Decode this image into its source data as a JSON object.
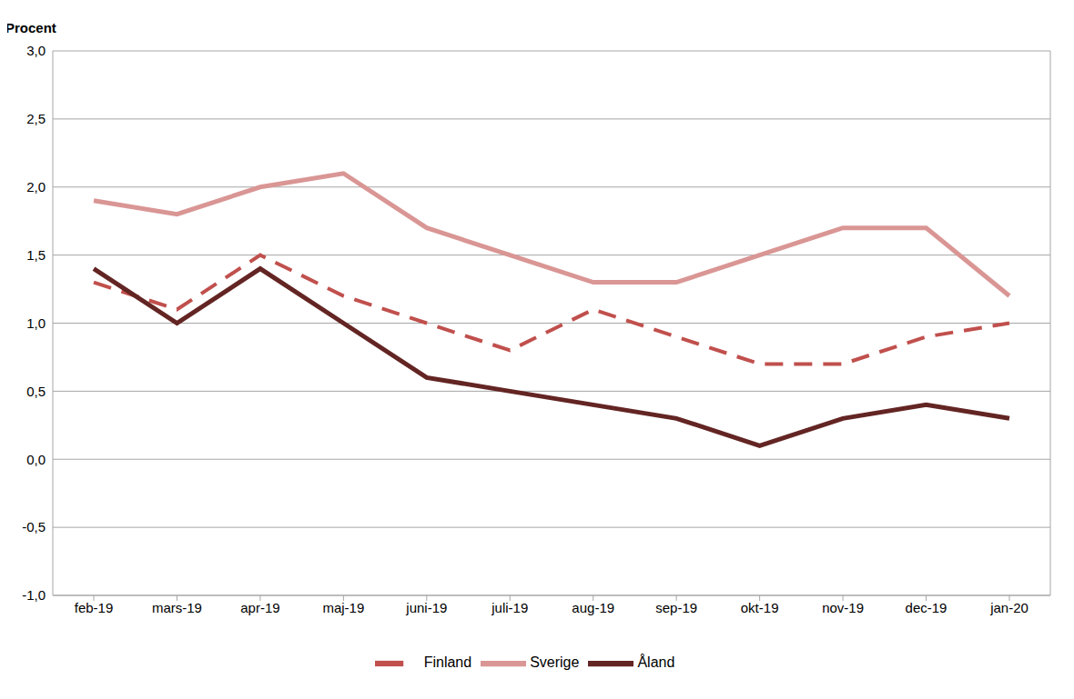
{
  "chart_data": {
    "type": "line",
    "y_label": "Procent",
    "categories": [
      "feb-19",
      "mars-19",
      "apr-19",
      "maj-19",
      "juni-19",
      "juli-19",
      "aug-19",
      "sep-19",
      "okt-19",
      "nov-19",
      "dec-19",
      "jan-20"
    ],
    "series": [
      {
        "name": "Sverige",
        "color": "#d99694",
        "line_style": "solid",
        "values": [
          1.9,
          1.8,
          2.0,
          2.1,
          1.7,
          1.5,
          1.3,
          1.3,
          1.5,
          1.7,
          1.7,
          1.2
        ]
      },
      {
        "name": "Finland",
        "color": "#c0504d",
        "line_style": "dashed",
        "values": [
          1.3,
          1.1,
          1.5,
          1.2,
          1.0,
          0.8,
          1.1,
          0.9,
          0.7,
          0.7,
          0.9,
          1.0
        ]
      },
      {
        "name": "Åland",
        "color": "#632523",
        "line_style": "solid",
        "values": [
          1.4,
          1.0,
          1.4,
          1.0,
          0.6,
          0.5,
          0.4,
          0.3,
          0.1,
          0.3,
          0.4,
          0.3
        ]
      }
    ],
    "ylim": [
      -1.0,
      3.0
    ],
    "yticks": [
      {
        "value": -1.0,
        "label": "-1,0"
      },
      {
        "value": -0.5,
        "label": "-0,5"
      },
      {
        "value": 0,
        "label": "0,0"
      },
      {
        "value": 0.5,
        "label": "0,5"
      },
      {
        "value": 1.0,
        "label": "1,0"
      },
      {
        "value": 1.5,
        "label": "1,5"
      },
      {
        "value": 2.0,
        "label": "2,0"
      },
      {
        "value": 2.5,
        "label": "2,5"
      },
      {
        "value": 3.0,
        "label": "3,0"
      }
    ],
    "grid": true,
    "legend": "bottom"
  }
}
